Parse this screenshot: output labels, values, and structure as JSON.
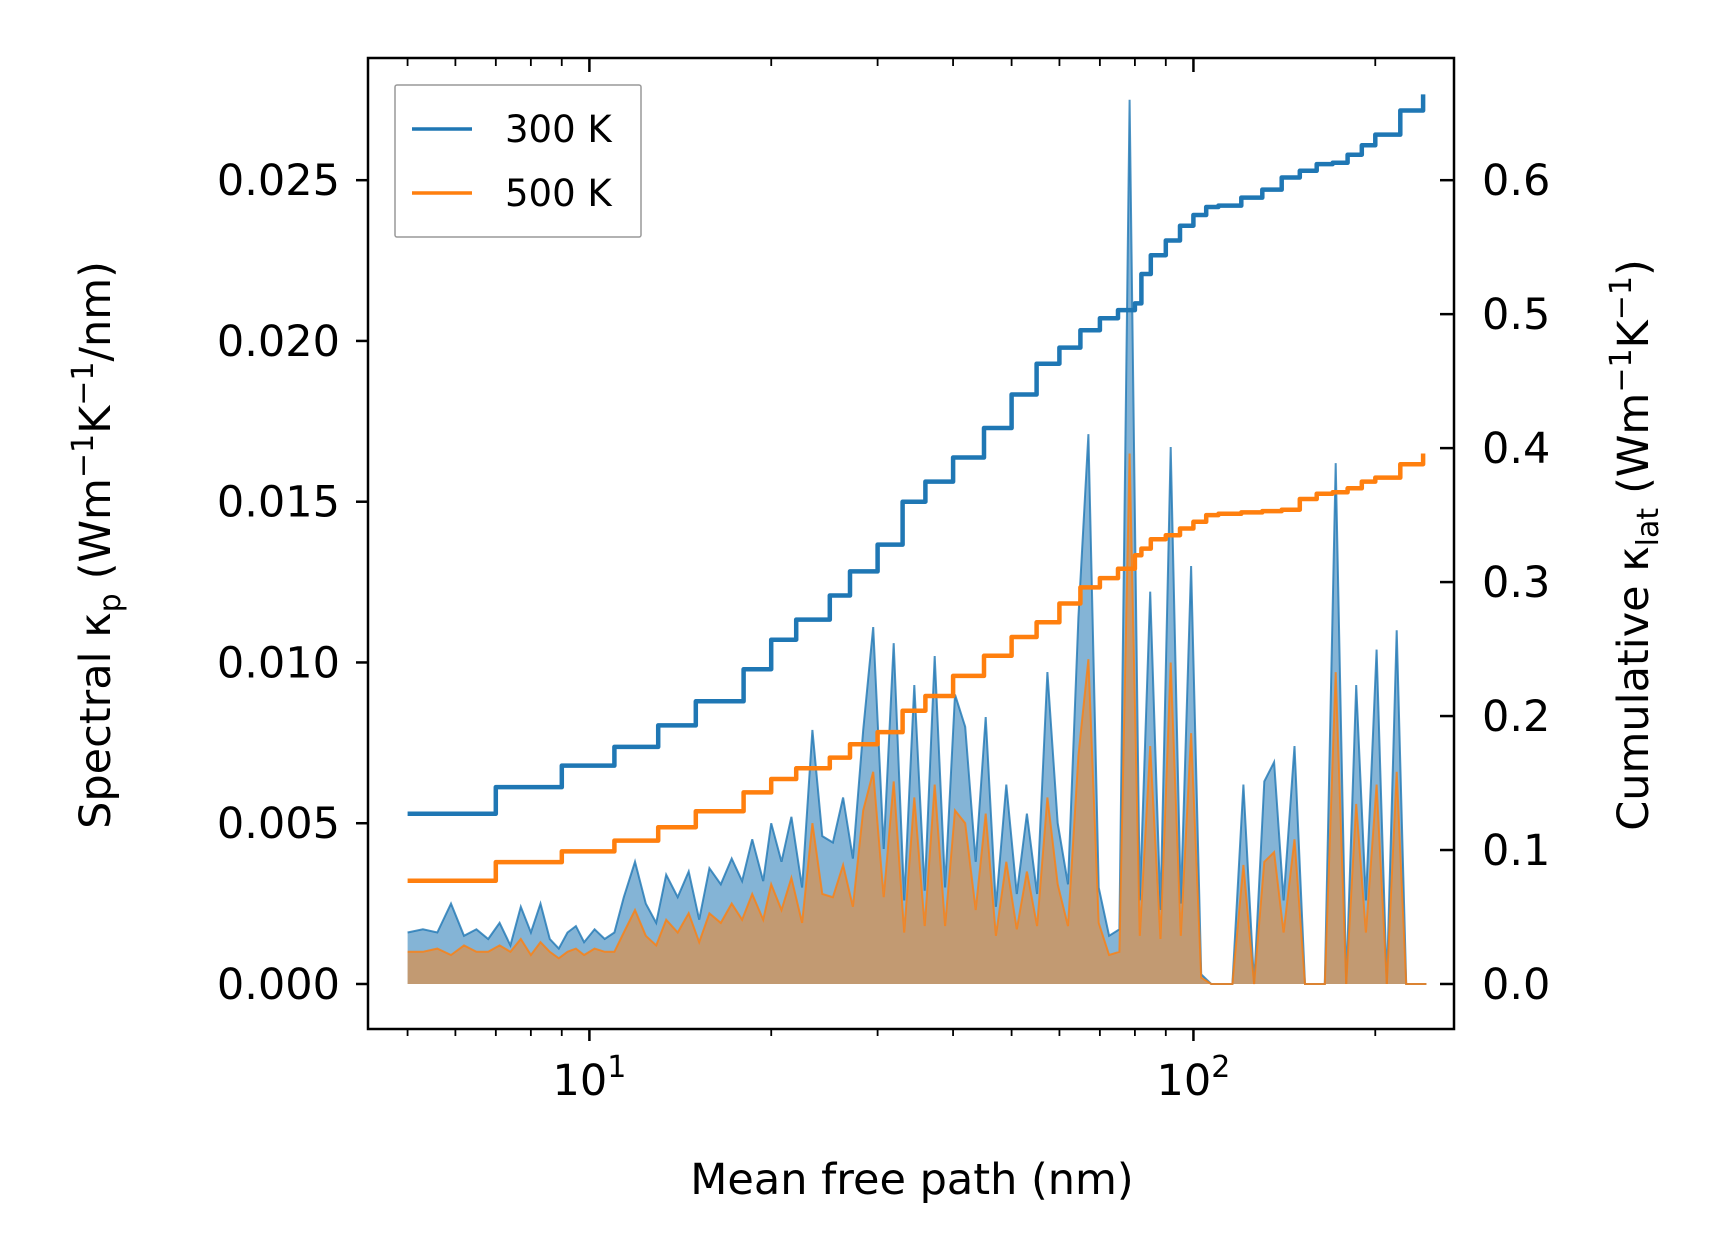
{
  "chart_data": {
    "type": "line",
    "xlabel": "Mean free path (nm)",
    "ylabel_left": {
      "main": "Spectral κ",
      "sub": "p",
      "units": "(Wm",
      "sup1": "−1",
      "k": "K",
      "sup2": "−1",
      "tail": "/nm)"
    },
    "ylabel_right": {
      "main": "Cumulative κ",
      "sub": "lat",
      "units": "(Wm",
      "sup1": "−1",
      "k": "K",
      "sup2": "−1",
      "tail": ")"
    },
    "xscale": "log",
    "xlim": [
      4.3,
      270
    ],
    "ylim_left": [
      -0.0014,
      0.0288
    ],
    "ylim_right": [
      -0.0336,
      0.6912
    ],
    "x_ticks": [
      {
        "value": 10,
        "base": "10",
        "exp": "1"
      },
      {
        "value": 100,
        "base": "10",
        "exp": "2"
      }
    ],
    "y_ticks_left": [
      "0.000",
      "0.005",
      "0.010",
      "0.015",
      "0.020",
      "0.025"
    ],
    "y_ticks_right": [
      "0.0",
      "0.1",
      "0.2",
      "0.3",
      "0.4",
      "0.5",
      "0.6"
    ],
    "legend": {
      "position": "top-left",
      "entries": [
        {
          "label": "300 K",
          "color": "#1f77b4"
        },
        {
          "label": "500 K",
          "color": "#ff7f0e"
        }
      ]
    },
    "cumulative_series": [
      {
        "name": "300 K",
        "color": "#1f77b4",
        "x": [
          5,
          7,
          9,
          11,
          13,
          15,
          18,
          20,
          22,
          25,
          27,
          30,
          33,
          36,
          40,
          45,
          50,
          55,
          60,
          65,
          70,
          75,
          80,
          82,
          85,
          90,
          95,
          100,
          105,
          110,
          120,
          130,
          140,
          150,
          160,
          170,
          180,
          190,
          200,
          220,
          240
        ],
        "values": [
          0.127,
          0.147,
          0.163,
          0.177,
          0.193,
          0.211,
          0.235,
          0.257,
          0.272,
          0.29,
          0.308,
          0.328,
          0.36,
          0.375,
          0.393,
          0.415,
          0.44,
          0.463,
          0.475,
          0.488,
          0.497,
          0.503,
          0.508,
          0.53,
          0.544,
          0.555,
          0.566,
          0.574,
          0.58,
          0.581,
          0.587,
          0.593,
          0.602,
          0.607,
          0.612,
          0.613,
          0.619,
          0.626,
          0.634,
          0.652,
          0.664
        ]
      },
      {
        "name": "500 K",
        "color": "#ff7f0e",
        "x": [
          5,
          7,
          9,
          11,
          13,
          15,
          18,
          20,
          22,
          25,
          27,
          30,
          33,
          36,
          40,
          45,
          50,
          55,
          60,
          65,
          70,
          75,
          80,
          82,
          85,
          90,
          95,
          100,
          105,
          110,
          120,
          130,
          140,
          150,
          160,
          170,
          180,
          190,
          200,
          220,
          240
        ],
        "values": [
          0.077,
          0.091,
          0.099,
          0.107,
          0.117,
          0.129,
          0.143,
          0.153,
          0.161,
          0.169,
          0.179,
          0.188,
          0.204,
          0.215,
          0.23,
          0.245,
          0.259,
          0.27,
          0.284,
          0.296,
          0.303,
          0.31,
          0.32,
          0.325,
          0.332,
          0.335,
          0.34,
          0.345,
          0.35,
          0.351,
          0.352,
          0.353,
          0.354,
          0.362,
          0.366,
          0.367,
          0.37,
          0.375,
          0.378,
          0.388,
          0.396
        ]
      }
    ],
    "spectral_series": [
      {
        "name": "300 K",
        "color": "#1f77b4",
        "x": [
          5,
          5.3,
          5.6,
          5.9,
          6.2,
          6.5,
          6.8,
          7.1,
          7.4,
          7.7,
          8.0,
          8.3,
          8.6,
          8.9,
          9.2,
          9.5,
          9.8,
          10.2,
          10.6,
          11.0,
          11.4,
          11.9,
          12.4,
          12.9,
          13.4,
          14.0,
          14.6,
          15.2,
          15.8,
          16.5,
          17.2,
          17.9,
          18.6,
          19.4,
          20.0,
          20.8,
          21.6,
          22.5,
          23.4,
          24.3,
          25.3,
          26.3,
          27.3,
          28.4,
          29.5,
          30.7,
          31.9,
          33.2,
          34.5,
          35.9,
          37.3,
          38.8,
          40.3,
          41.9,
          43.6,
          45.3,
          47.1,
          49.0,
          51.0,
          53.0,
          55.1,
          57.3,
          59.6,
          62.0,
          64.5,
          67.0,
          69.7,
          72.5,
          75.4,
          78.4,
          81.5,
          84.8,
          88.2,
          91.7,
          95.3,
          99.1,
          103,
          107,
          111,
          116,
          121,
          126,
          131,
          136,
          141,
          147,
          153,
          159,
          165,
          172,
          179,
          186,
          193,
          201,
          209,
          217,
          225,
          234,
          243
        ],
        "values": [
          0.0016,
          0.0017,
          0.0016,
          0.0025,
          0.0015,
          0.0017,
          0.0014,
          0.0019,
          0.0012,
          0.0024,
          0.0016,
          0.0025,
          0.0014,
          0.0011,
          0.0016,
          0.0018,
          0.0013,
          0.0017,
          0.0014,
          0.0016,
          0.0027,
          0.0038,
          0.0025,
          0.0019,
          0.0034,
          0.0027,
          0.0035,
          0.002,
          0.0036,
          0.0031,
          0.0039,
          0.0032,
          0.0045,
          0.0032,
          0.005,
          0.0038,
          0.0052,
          0.003,
          0.0079,
          0.0046,
          0.0044,
          0.0058,
          0.0039,
          0.0079,
          0.0111,
          0.0042,
          0.0106,
          0.0026,
          0.0093,
          0.0029,
          0.0102,
          0.003,
          0.009,
          0.008,
          0.0038,
          0.0083,
          0.0024,
          0.0062,
          0.0028,
          0.0053,
          0.0028,
          0.0097,
          0.005,
          0.0031,
          0.0114,
          0.0171,
          0.003,
          0.0015,
          0.0017,
          0.0275,
          0.0026,
          0.0122,
          0.0023,
          0.0167,
          0.0025,
          0.013,
          0.0003,
          0.0,
          0.0,
          0.0,
          0.0062,
          0.0,
          0.0063,
          0.0069,
          0.0026,
          0.0074,
          0.0,
          0.0,
          0.0,
          0.0162,
          0.0,
          0.0093,
          0.0026,
          0.0104,
          0.0,
          0.011,
          0.0,
          0.0,
          0.0
        ]
      },
      {
        "name": "500 K",
        "color": "#ff7f0e",
        "x": [
          5,
          5.3,
          5.6,
          5.9,
          6.2,
          6.5,
          6.8,
          7.1,
          7.4,
          7.7,
          8.0,
          8.3,
          8.6,
          8.9,
          9.2,
          9.5,
          9.8,
          10.2,
          10.6,
          11.0,
          11.4,
          11.9,
          12.4,
          12.9,
          13.4,
          14.0,
          14.6,
          15.2,
          15.8,
          16.5,
          17.2,
          17.9,
          18.6,
          19.4,
          20.0,
          20.8,
          21.6,
          22.5,
          23.4,
          24.3,
          25.3,
          26.3,
          27.3,
          28.4,
          29.5,
          30.7,
          31.9,
          33.2,
          34.5,
          35.9,
          37.3,
          38.8,
          40.3,
          41.9,
          43.6,
          45.3,
          47.1,
          49.0,
          51.0,
          53.0,
          55.1,
          57.3,
          59.6,
          62.0,
          64.5,
          67.0,
          69.7,
          72.5,
          75.4,
          78.4,
          81.5,
          84.8,
          88.2,
          91.7,
          95.3,
          99.1,
          103,
          107,
          111,
          116,
          121,
          126,
          131,
          136,
          141,
          147,
          153,
          159,
          165,
          172,
          179,
          186,
          193,
          201,
          209,
          217,
          225,
          234,
          243
        ],
        "values": [
          0.001,
          0.001,
          0.0011,
          0.0009,
          0.0012,
          0.001,
          0.001,
          0.0012,
          0.001,
          0.0014,
          0.0009,
          0.0013,
          0.001,
          0.0008,
          0.001,
          0.0011,
          0.0009,
          0.0011,
          0.001,
          0.001,
          0.0016,
          0.0023,
          0.0015,
          0.0012,
          0.002,
          0.0016,
          0.0022,
          0.0013,
          0.0022,
          0.0019,
          0.0025,
          0.002,
          0.0028,
          0.002,
          0.0031,
          0.0023,
          0.0033,
          0.0019,
          0.005,
          0.0028,
          0.0027,
          0.0037,
          0.0024,
          0.0054,
          0.0066,
          0.0027,
          0.0063,
          0.0016,
          0.0058,
          0.0018,
          0.0062,
          0.0018,
          0.0054,
          0.005,
          0.0023,
          0.0053,
          0.0015,
          0.0038,
          0.0017,
          0.0035,
          0.0018,
          0.0058,
          0.0031,
          0.0018,
          0.0071,
          0.0101,
          0.0019,
          0.0009,
          0.001,
          0.0165,
          0.0015,
          0.0074,
          0.0014,
          0.01,
          0.0015,
          0.0078,
          0.0002,
          0.0,
          0.0,
          0.0,
          0.0037,
          0.0,
          0.0038,
          0.0041,
          0.0016,
          0.0045,
          0.0,
          0.0,
          0.0,
          0.0097,
          0.0,
          0.0056,
          0.0016,
          0.0062,
          0.0,
          0.0066,
          0.0,
          0.0,
          0.0
        ]
      }
    ]
  }
}
